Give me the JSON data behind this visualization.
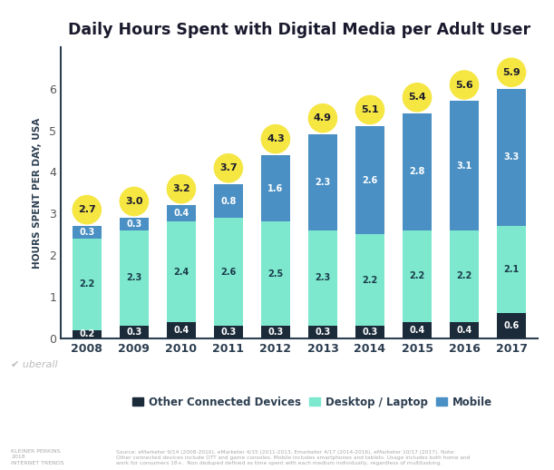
{
  "title": "Daily Hours Spent with Digital Media per Adult User",
  "ylabel": "HOURS SPENT PER DAY, USA",
  "years": [
    2008,
    2009,
    2010,
    2011,
    2012,
    2013,
    2014,
    2015,
    2016,
    2017
  ],
  "other": [
    0.2,
    0.3,
    0.4,
    0.3,
    0.3,
    0.3,
    0.3,
    0.4,
    0.4,
    0.6
  ],
  "desktop": [
    2.2,
    2.3,
    2.4,
    2.6,
    2.5,
    2.3,
    2.2,
    2.2,
    2.2,
    2.1
  ],
  "mobile": [
    0.3,
    0.3,
    0.4,
    0.8,
    1.6,
    2.3,
    2.6,
    2.8,
    3.1,
    3.3
  ],
  "totals": [
    2.7,
    3.0,
    3.2,
    3.7,
    4.3,
    4.9,
    5.1,
    5.4,
    5.6,
    5.9
  ],
  "color_other": "#1c2b3a",
  "color_desktop": "#7de8ce",
  "color_mobile": "#4a90c4",
  "color_total_bubble": "#f5e642",
  "color_total_text": "#1a1a2e",
  "ylim": [
    0,
    7.0
  ],
  "background_color": "#ffffff",
  "source_text": "Source: eMarketer 9/14 (2008-2010), eMarketer 4/15 (2011-2013, Emarketer 4/17 (2014-2016), eMarketer 10/17 (2017). Note:\nOther connected devices include OTT and game consoles. Mobile includes smartphones and tablets. Usage includes both home and\nwork for consumers 18+.  Non deduped defined as time spent with each medium individually, regardless of multitasking.",
  "kleiner_text": "KLEINER PERKINS\n2018\nINTERNET TRENDS"
}
